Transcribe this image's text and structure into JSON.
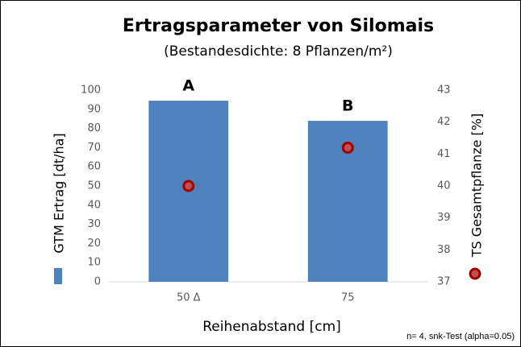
{
  "chart_data": {
    "type": "bar",
    "title": "Ertragsparameter von Silomais",
    "subtitle": "(Bestandesdichte: 8 Pflanzen/m²)",
    "xlabel": "Reihenabstand [cm]",
    "categories": [
      "50 Δ",
      "75"
    ],
    "series": [
      {
        "name": "GTM Ertrag [dt/ha]",
        "type": "bar",
        "color": "#4f81bd",
        "values": [
          94.5,
          84
        ]
      },
      {
        "name": "TS Gesamtpflanze [%]",
        "type": "scatter",
        "axis": "y2",
        "color": "#c0504d",
        "edge": "#a00000",
        "values": [
          40.0,
          41.2
        ]
      }
    ],
    "annotations": [
      "A",
      "B"
    ],
    "footnote": "n= 4, snk-Test (alpha=0.05)",
    "ylim": [
      0,
      100
    ],
    "yticks": [
      0,
      10,
      20,
      30,
      40,
      50,
      60,
      70,
      80,
      90,
      100
    ],
    "y2lim": [
      37,
      43
    ],
    "y2ticks": [
      37,
      38,
      39,
      40,
      41,
      42,
      43
    ],
    "grid": false
  }
}
